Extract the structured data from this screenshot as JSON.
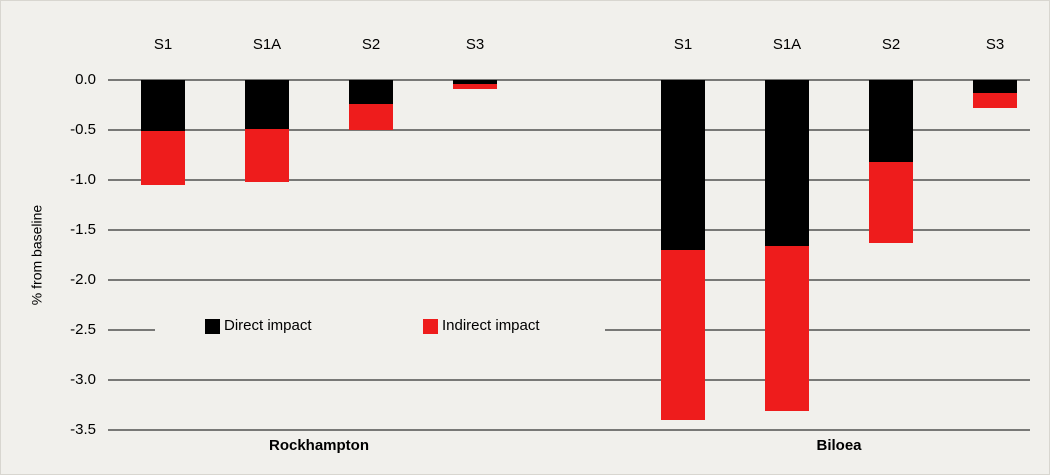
{
  "chart_data": {
    "type": "stacked_bar",
    "y_label": "% from baseline",
    "categories": [
      "S1",
      "S1A",
      "S2",
      "S3",
      null,
      "S1",
      "S1A",
      "S2",
      "S3"
    ],
    "groups": [
      {
        "name": "Rockhampton",
        "from": 0,
        "to": 3
      },
      {
        "name": "Biloea",
        "from": 5,
        "to": 8
      }
    ],
    "series": [
      {
        "name": "Direct impact",
        "color": "#000000",
        "values": [
          -0.51,
          -0.49,
          -0.24,
          -0.04,
          null,
          -1.7,
          -1.66,
          -0.82,
          -0.13
        ]
      },
      {
        "name": "Indirect impact",
        "color": "#ee1c1c",
        "values": [
          -0.54,
          -0.53,
          -0.26,
          -0.05,
          null,
          -1.7,
          -1.65,
          -0.81,
          -0.15
        ]
      }
    ],
    "ylim": [
      -3.5,
      0
    ],
    "yticks": [
      {
        "value": 0,
        "label": "0.0"
      },
      -0.5,
      {
        "value": -1,
        "label": "-1.0"
      },
      -1.5,
      {
        "value": -2,
        "label": "-2.0"
      },
      -2.5,
      {
        "value": -3,
        "label": "-3.0"
      },
      -3.5
    ],
    "grid": true,
    "legend": "center"
  }
}
